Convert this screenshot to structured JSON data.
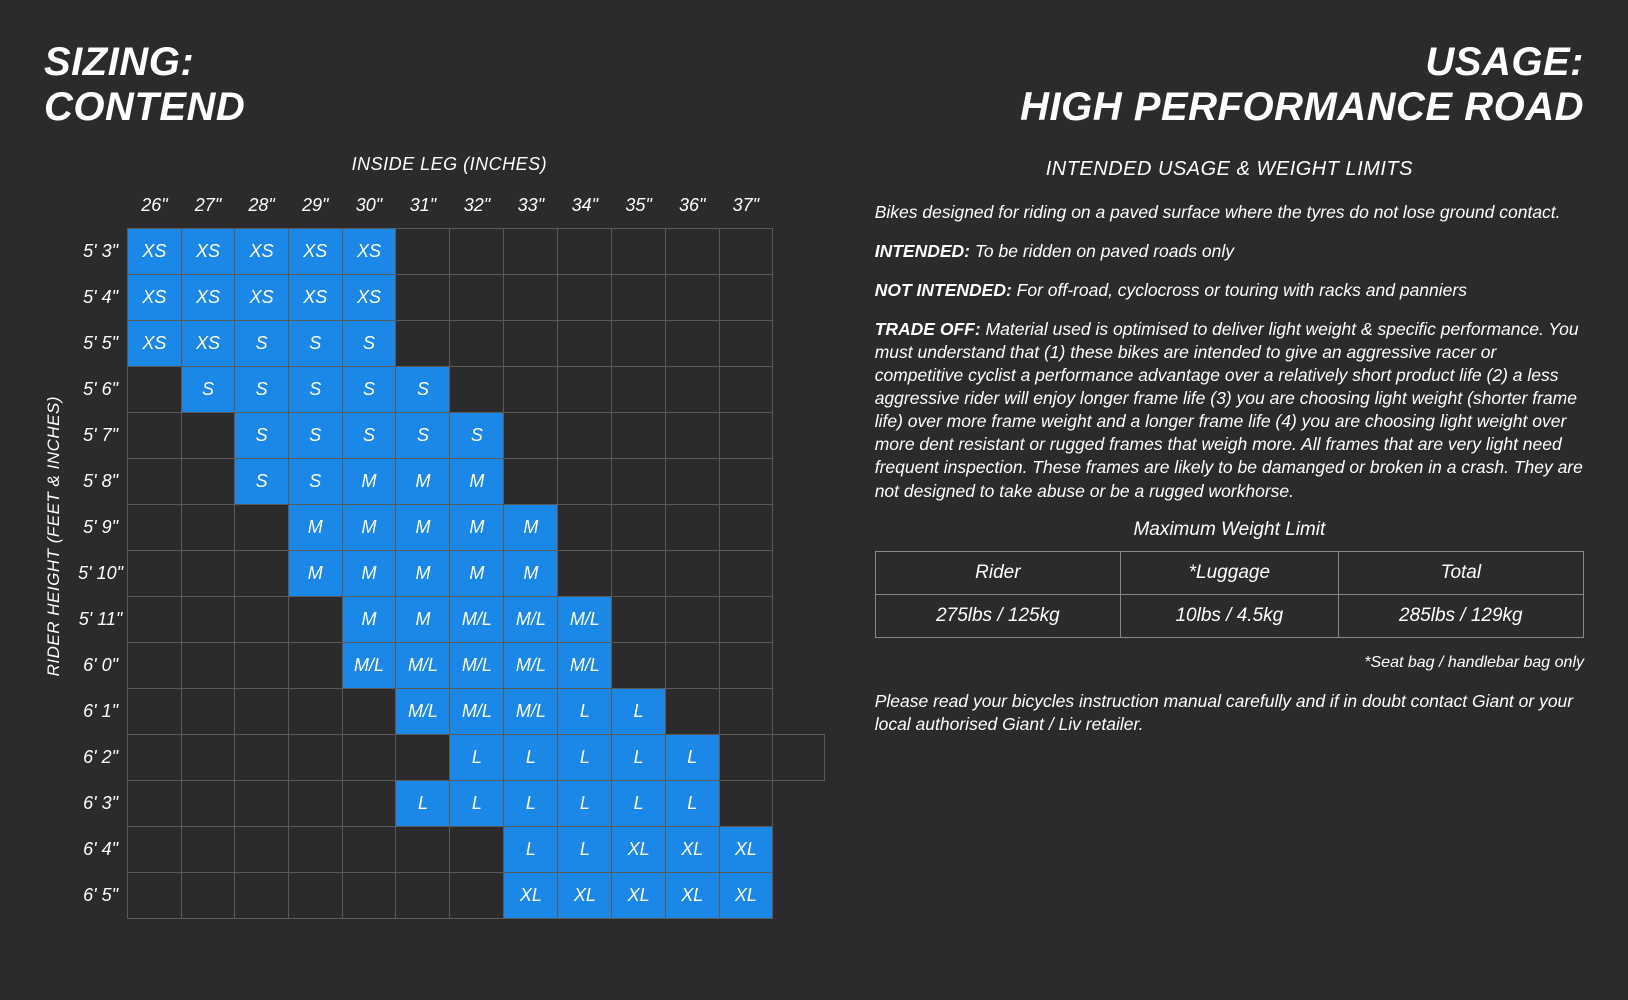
{
  "colors": {
    "background": "#2b2b2b",
    "cell_fill": "#1b87e6",
    "grid_line": "#5a5a5a",
    "text": "#ffffff"
  },
  "title_left": {
    "line1": "SIZING:",
    "line2": "CONTEND"
  },
  "title_right": {
    "line1": "USAGE:",
    "line2": "HIGH PERFORMANCE ROAD"
  },
  "sizing": {
    "x_axis_label": "INSIDE LEG (INCHES)",
    "y_axis_label": "RIDER HEIGHT (FEET & INCHES)",
    "columns": [
      "26\"",
      "27\"",
      "28\"",
      "29\"",
      "30\"",
      "31\"",
      "32\"",
      "33\"",
      "34\"",
      "35\"",
      "36\"",
      "37\""
    ],
    "rows": [
      {
        "h": "5' 3\"",
        "cells": [
          "XS",
          "XS",
          "XS",
          "XS",
          "XS",
          "",
          "",
          "",
          "",
          "",
          "",
          ""
        ]
      },
      {
        "h": "5' 4\"",
        "cells": [
          "XS",
          "XS",
          "XS",
          "XS",
          "XS",
          "",
          "",
          "",
          "",
          "",
          "",
          ""
        ]
      },
      {
        "h": "5' 5\"",
        "cells": [
          "XS",
          "XS",
          "S",
          "S",
          "S",
          "",
          "",
          "",
          "",
          "",
          "",
          ""
        ]
      },
      {
        "h": "5' 6\"",
        "cells": [
          "",
          "S",
          "S",
          "S",
          "S",
          "S",
          "",
          "",
          "",
          "",
          "",
          ""
        ]
      },
      {
        "h": "5' 7\"",
        "cells": [
          "",
          "",
          "S",
          "S",
          "S",
          "S",
          "S",
          "",
          "",
          "",
          "",
          ""
        ]
      },
      {
        "h": "5' 8\"",
        "cells": [
          "",
          "",
          "S",
          "S",
          "M",
          "M",
          "M",
          "",
          "",
          "",
          "",
          ""
        ]
      },
      {
        "h": "5' 9\"",
        "cells": [
          "",
          "",
          "",
          "M",
          "M",
          "M",
          "M",
          "M",
          "",
          "",
          "",
          ""
        ]
      },
      {
        "h": "5' 10\"",
        "cells": [
          "",
          "",
          "",
          "M",
          "M",
          "M",
          "M",
          "M",
          "",
          "",
          "",
          ""
        ]
      },
      {
        "h": "5' 11\"",
        "cells": [
          "",
          "",
          "",
          "",
          "M",
          "M",
          "M/L",
          "M/L",
          "M/L",
          "",
          "",
          ""
        ]
      },
      {
        "h": "6' 0\"",
        "cells": [
          "",
          "",
          "",
          "",
          "M/L",
          "M/L",
          "M/L",
          "M/L",
          "M/L",
          "",
          "",
          ""
        ]
      },
      {
        "h": "6' 1\"",
        "cells": [
          "",
          "",
          "",
          "",
          "",
          "M/L",
          "M/L",
          "M/L",
          "L",
          "L",
          "",
          ""
        ]
      },
      {
        "h": "6' 2\"",
        "cells": [
          "",
          "",
          "",
          "",
          "",
          "",
          "L",
          "L",
          "L",
          "L",
          "L",
          "",
          ""
        ]
      },
      {
        "h": "6' 3\"",
        "cells": [
          "",
          "",
          "",
          "",
          "",
          "L",
          "L",
          "L",
          "L",
          "L",
          "L",
          ""
        ]
      },
      {
        "h": "6' 4\"",
        "cells": [
          "",
          "",
          "",
          "",
          "",
          "",
          "",
          "L",
          "L",
          "XL",
          "XL",
          "XL"
        ]
      },
      {
        "h": "6' 5\"",
        "cells": [
          "",
          "",
          "",
          "",
          "",
          "",
          "",
          "XL",
          "XL",
          "XL",
          "XL",
          "XL"
        ]
      }
    ]
  },
  "usage": {
    "subhead": "INTENDED USAGE & WEIGHT LIMITS",
    "intro": "Bikes designed for  riding on a paved surface where the tyres do not lose ground contact.",
    "intended_label": "INTENDED:",
    "intended_text": " To be ridden on paved roads only",
    "not_intended_label": "NOT INTENDED:",
    "not_intended_text": " For off-road, cyclocross or touring with racks and panniers",
    "tradeoff_label": "TRADE OFF:",
    "tradeoff_text": " Material used is optimised to deliver light weight & specific performance. You must understand that (1) these bikes are intended to give an aggressive racer or competitive cyclist a performance advantage over a relatively short product life (2) a less aggressive rider will enjoy longer frame life (3) you are choosing light weight (shorter frame life) over more frame weight and a longer frame life (4) you are choosing light weight over more dent resistant or rugged frames that weigh more. All frames that are very light need frequent inspection. These frames are likely to be damanged or broken in a crash. They are not designed to take abuse or be a rugged workhorse.",
    "weight_table": {
      "title": "Maximum Weight Limit",
      "headers": [
        "Rider",
        "*Luggage",
        "Total"
      ],
      "row": [
        "275lbs / 125kg",
        "10lbs / 4.5kg",
        "285lbs / 129kg"
      ],
      "footnote": "*Seat bag / handlebar bag only"
    },
    "footer": "Please read your bicycles instruction manual carefully and if in doubt contact Giant or your local authorised Giant / Liv retailer."
  }
}
